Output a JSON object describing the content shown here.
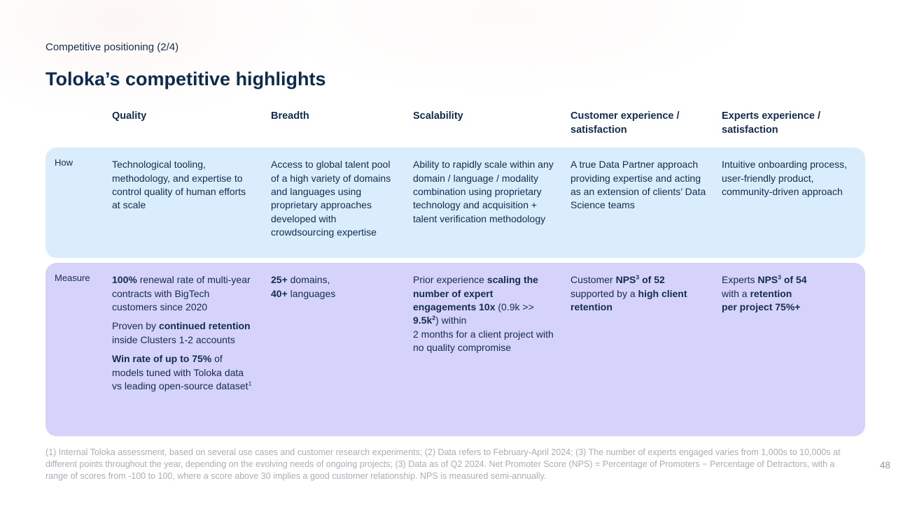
{
  "header": {
    "eyebrow": "Competitive positioning (2/4)",
    "title": "Toloka’s competitive highlights"
  },
  "table": {
    "columns": [
      "Quality",
      "Breadth",
      "Scalability",
      "Customer experience / satisfaction",
      "Experts experience / satisfaction"
    ],
    "rows": [
      {
        "label": "How",
        "cells": [
          [
            [
              {
                "t": "Technological tooling, methodology, and expertise to control quality of human efforts at scale"
              }
            ]
          ],
          [
            [
              {
                "t": "Access to global talent pool of a high variety of domains and languages using proprietary approaches developed with crowdsourcing expertise"
              }
            ]
          ],
          [
            [
              {
                "t": "Ability to rapidly scale within any domain / language / modality combination using proprietary technology and acquisition + talent verification methodology"
              }
            ]
          ],
          [
            [
              {
                "t": "A true Data Partner approach providing expertise and acting"
              },
              {
                "br": true
              },
              {
                "t": "as an extension of clients’ Data Science teams"
              }
            ]
          ],
          [
            [
              {
                "t": "Intuitive onboarding process, user-friendly product,"
              },
              {
                "br": true
              },
              {
                "t": "community-driven approach"
              }
            ]
          ]
        ]
      },
      {
        "label": "Measure",
        "cells": [
          [
            [
              {
                "t": "100%",
                "b": true
              },
              {
                "t": " renewal rate of multi-year contracts with BigTech customers since 2020"
              }
            ],
            [
              {
                "t": "Proven by "
              },
              {
                "t": "continued retention",
                "b": true
              },
              {
                "t": " inside Clusters 1-2 accounts"
              }
            ],
            [
              {
                "t": "Win rate of up to 75%",
                "b": true
              },
              {
                "t": " of models tuned with Toloka data vs leading open-source dataset"
              },
              {
                "t": "1",
                "sup": true
              }
            ]
          ],
          [
            [
              {
                "t": "25+",
                "b": true
              },
              {
                "t": " domains,"
              },
              {
                "br": true
              },
              {
                "t": "40+",
                "b": true
              },
              {
                "t": " languages"
              }
            ]
          ],
          [
            [
              {
                "t": "Prior experience "
              },
              {
                "t": "scaling the number of expert engagements 10x",
                "b": true
              },
              {
                "t": " (0.9k >> "
              },
              {
                "t": "9.5k",
                "b": true
              },
              {
                "t": "2",
                "b": true,
                "sup": true
              },
              {
                "t": ") within"
              },
              {
                "br": true
              },
              {
                "t": "2 months for a client project with no quality compromise"
              }
            ]
          ],
          [
            [
              {
                "t": "Customer "
              },
              {
                "t": "NPS",
                "b": true
              },
              {
                "t": "3",
                "b": true,
                "sup": true
              },
              {
                "t": " of 52",
                "b": true
              },
              {
                "t": " supported by a "
              },
              {
                "t": "high client retention",
                "b": true
              }
            ]
          ],
          [
            [
              {
                "t": "Experts "
              },
              {
                "t": "NPS",
                "b": true
              },
              {
                "t": "3",
                "b": true,
                "sup": true
              },
              {
                "t": " of 54",
                "b": true
              },
              {
                "br": true
              },
              {
                "t": "with a "
              },
              {
                "t": "retention",
                "b": true
              },
              {
                "br": true
              },
              {
                "t": "per project 75%+",
                "b": true
              }
            ]
          ]
        ]
      }
    ]
  },
  "footnote": "(1) Internal Toloka assessment, based on several use cases and customer research experiments; (2) Data refers to February-April 2024; (3) The number of experts engaged varies from 1,000s to 10,000s at different points throughout the year, depending on the evolving needs of ongoing projects; (3) Data as of Q2 2024. Net Promoter Score (NPS) = Percentage of Promoters − Percentage of Detractors, with a range of scores from -100 to 100, where a score above 30 implies a good customer relationship. NPS is measured semi-annually.",
  "page_number": "48",
  "colors": {
    "how_row_bg": "#d9edfc",
    "measure_row_bg": "#d5d3fa",
    "text": "#132c4e",
    "footnote": "#a9aeb6"
  }
}
